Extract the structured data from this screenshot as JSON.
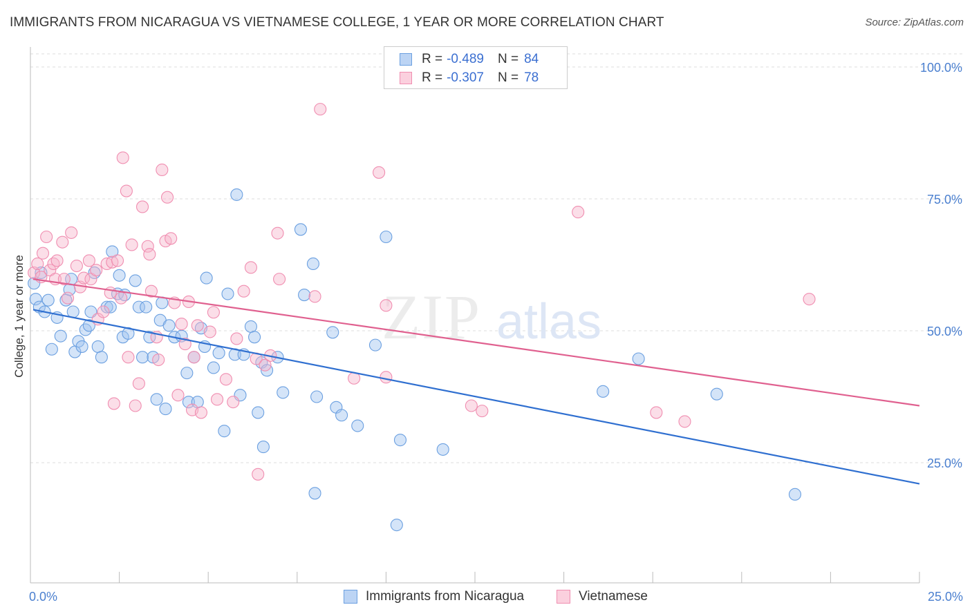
{
  "header": {
    "title": "IMMIGRANTS FROM NICARAGUA VS VIETNAMESE COLLEGE, 1 YEAR OR MORE CORRELATION CHART",
    "source": "Source: ZipAtlas.com"
  },
  "watermark": {
    "zip": "ZIP",
    "atlas": "atlas"
  },
  "legend": {
    "r_label": "R =",
    "n_label": "N =",
    "items": [
      {
        "r": "-0.489",
        "n": "84"
      },
      {
        "r": "-0.307",
        "n": "78"
      }
    ]
  },
  "chart_data": {
    "type": "scatter",
    "title": "IMMIGRANTS FROM NICARAGUA VS VIETNAMESE COLLEGE, 1 YEAR OR MORE CORRELATION CHART",
    "xlabel": "",
    "ylabel": "College, 1 year or more",
    "xlim": [
      0,
      25
    ],
    "ylim": [
      5,
      105
    ],
    "x_tick_labels": [
      "0.0%",
      "25.0%"
    ],
    "y_ticks": [
      25,
      50,
      75,
      100
    ],
    "y_tick_labels": [
      "25.0%",
      "50.0%",
      "75.0%",
      "100.0%"
    ],
    "grid": true,
    "legend_position": "top-center",
    "colors": {
      "blue": "#6a9fe0",
      "pink": "#f08db0",
      "blue_line": "#2f6fd0",
      "pink_line": "#e0608f"
    },
    "series": [
      {
        "name": "Immigrants from Nicaragua",
        "color": "#6a9fe0",
        "trend": {
          "x": [
            0,
            25
          ],
          "y": [
            54.0,
            21.0
          ]
        },
        "points": [
          [
            0.1,
            59
          ],
          [
            0.15,
            56
          ],
          [
            0.25,
            54.5
          ],
          [
            0.4,
            53.6
          ],
          [
            0.5,
            55.8
          ],
          [
            0.6,
            46.5
          ],
          [
            0.75,
            52.5
          ],
          [
            0.85,
            49
          ],
          [
            1.0,
            55.8
          ],
          [
            1.1,
            57.8
          ],
          [
            1.2,
            53.6
          ],
          [
            1.25,
            46
          ],
          [
            1.35,
            48
          ],
          [
            1.45,
            47
          ],
          [
            1.55,
            50.2
          ],
          [
            1.65,
            51
          ],
          [
            1.7,
            53.6
          ],
          [
            1.8,
            61
          ],
          [
            1.9,
            47
          ],
          [
            2.0,
            45
          ],
          [
            2.15,
            54.5
          ],
          [
            2.25,
            54.5
          ],
          [
            2.3,
            65
          ],
          [
            2.45,
            57
          ],
          [
            2.5,
            60.5
          ],
          [
            2.6,
            48.8
          ],
          [
            2.65,
            56.8
          ],
          [
            2.75,
            49.5
          ],
          [
            2.95,
            59.5
          ],
          [
            3.05,
            54.5
          ],
          [
            3.15,
            45
          ],
          [
            3.25,
            54.5
          ],
          [
            3.35,
            48.8
          ],
          [
            3.45,
            45
          ],
          [
            3.55,
            37
          ],
          [
            3.65,
            52
          ],
          [
            3.7,
            55.3
          ],
          [
            3.8,
            35.2
          ],
          [
            3.9,
            51
          ],
          [
            4.05,
            48.8
          ],
          [
            4.25,
            49
          ],
          [
            4.4,
            42
          ],
          [
            4.45,
            36.5
          ],
          [
            4.6,
            45
          ],
          [
            4.7,
            36.5
          ],
          [
            4.8,
            50.5
          ],
          [
            4.9,
            47
          ],
          [
            4.95,
            60
          ],
          [
            5.15,
            43
          ],
          [
            5.3,
            45.8
          ],
          [
            5.45,
            31
          ],
          [
            5.55,
            57
          ],
          [
            5.75,
            45.5
          ],
          [
            5.8,
            75.8
          ],
          [
            5.9,
            37.8
          ],
          [
            6.0,
            45.5
          ],
          [
            6.2,
            50.8
          ],
          [
            6.3,
            48.8
          ],
          [
            6.4,
            34.5
          ],
          [
            6.5,
            44
          ],
          [
            6.55,
            28
          ],
          [
            6.65,
            42.5
          ],
          [
            6.95,
            45
          ],
          [
            7.1,
            38.3
          ],
          [
            7.6,
            69.2
          ],
          [
            7.7,
            56.8
          ],
          [
            7.95,
            62.7
          ],
          [
            8.0,
            19.2
          ],
          [
            8.05,
            37.5
          ],
          [
            8.5,
            49.7
          ],
          [
            8.6,
            35.5
          ],
          [
            8.75,
            34
          ],
          [
            9.2,
            32
          ],
          [
            9.7,
            47.3
          ],
          [
            10.0,
            67.8
          ],
          [
            10.3,
            13.2
          ],
          [
            10.4,
            29.3
          ],
          [
            11.6,
            27.5
          ],
          [
            16.1,
            38.5
          ],
          [
            17.1,
            44.7
          ],
          [
            19.3,
            38
          ],
          [
            21.5,
            19
          ],
          [
            0.3,
            61
          ],
          [
            1.15,
            59.8
          ]
        ]
      },
      {
        "name": "Vietnamese",
        "color": "#f08db0",
        "trend": {
          "x": [
            0,
            25
          ],
          "y": [
            59.8,
            35.8
          ]
        },
        "points": [
          [
            0.1,
            61
          ],
          [
            0.2,
            62.7
          ],
          [
            0.3,
            60.2
          ],
          [
            0.35,
            64.7
          ],
          [
            0.45,
            67.8
          ],
          [
            0.55,
            61.5
          ],
          [
            0.65,
            62.7
          ],
          [
            0.7,
            59.8
          ],
          [
            0.75,
            63.3
          ],
          [
            0.9,
            66.8
          ],
          [
            0.95,
            59.8
          ],
          [
            1.05,
            56.2
          ],
          [
            1.15,
            68.6
          ],
          [
            1.3,
            62.3
          ],
          [
            1.4,
            58.3
          ],
          [
            1.5,
            60
          ],
          [
            1.65,
            63.3
          ],
          [
            1.7,
            59.8
          ],
          [
            1.85,
            61.5
          ],
          [
            1.9,
            52.2
          ],
          [
            2.05,
            53.6
          ],
          [
            2.15,
            62.7
          ],
          [
            2.25,
            57.2
          ],
          [
            2.3,
            63
          ],
          [
            2.35,
            36.2
          ],
          [
            2.45,
            63.3
          ],
          [
            2.55,
            56.2
          ],
          [
            2.6,
            82.8
          ],
          [
            2.7,
            76.5
          ],
          [
            2.75,
            45
          ],
          [
            2.85,
            66.3
          ],
          [
            2.95,
            35.8
          ],
          [
            3.05,
            40
          ],
          [
            3.15,
            73.5
          ],
          [
            3.3,
            66
          ],
          [
            3.35,
            64.5
          ],
          [
            3.4,
            57.5
          ],
          [
            3.55,
            48.8
          ],
          [
            3.6,
            44.5
          ],
          [
            3.7,
            80.5
          ],
          [
            3.8,
            67
          ],
          [
            3.85,
            75.3
          ],
          [
            3.95,
            67.5
          ],
          [
            4.05,
            55.3
          ],
          [
            4.15,
            37.8
          ],
          [
            4.25,
            51.3
          ],
          [
            4.35,
            47.5
          ],
          [
            4.45,
            55.5
          ],
          [
            4.55,
            35
          ],
          [
            4.6,
            45
          ],
          [
            4.7,
            51
          ],
          [
            4.8,
            34.5
          ],
          [
            5.05,
            49.8
          ],
          [
            5.15,
            53.5
          ],
          [
            5.25,
            37
          ],
          [
            5.5,
            40.8
          ],
          [
            5.7,
            36.5
          ],
          [
            5.8,
            48.5
          ],
          [
            6.0,
            57.5
          ],
          [
            6.2,
            62
          ],
          [
            6.35,
            44.7
          ],
          [
            6.4,
            22.8
          ],
          [
            6.6,
            43.5
          ],
          [
            6.75,
            45.3
          ],
          [
            6.95,
            68.5
          ],
          [
            7.0,
            59.8
          ],
          [
            8.0,
            56.5
          ],
          [
            8.15,
            92
          ],
          [
            9.1,
            41
          ],
          [
            9.8,
            80
          ],
          [
            10.0,
            41.2
          ],
          [
            10.0,
            54.8
          ],
          [
            12.4,
            35.8
          ],
          [
            12.7,
            34.8
          ],
          [
            15.4,
            72.5
          ],
          [
            17.6,
            34.5
          ],
          [
            18.4,
            32.8
          ],
          [
            21.9,
            56
          ]
        ]
      }
    ]
  },
  "bottom_legend": {
    "items": [
      {
        "label": "Immigrants from Nicaragua"
      },
      {
        "label": "Vietnamese"
      }
    ]
  }
}
